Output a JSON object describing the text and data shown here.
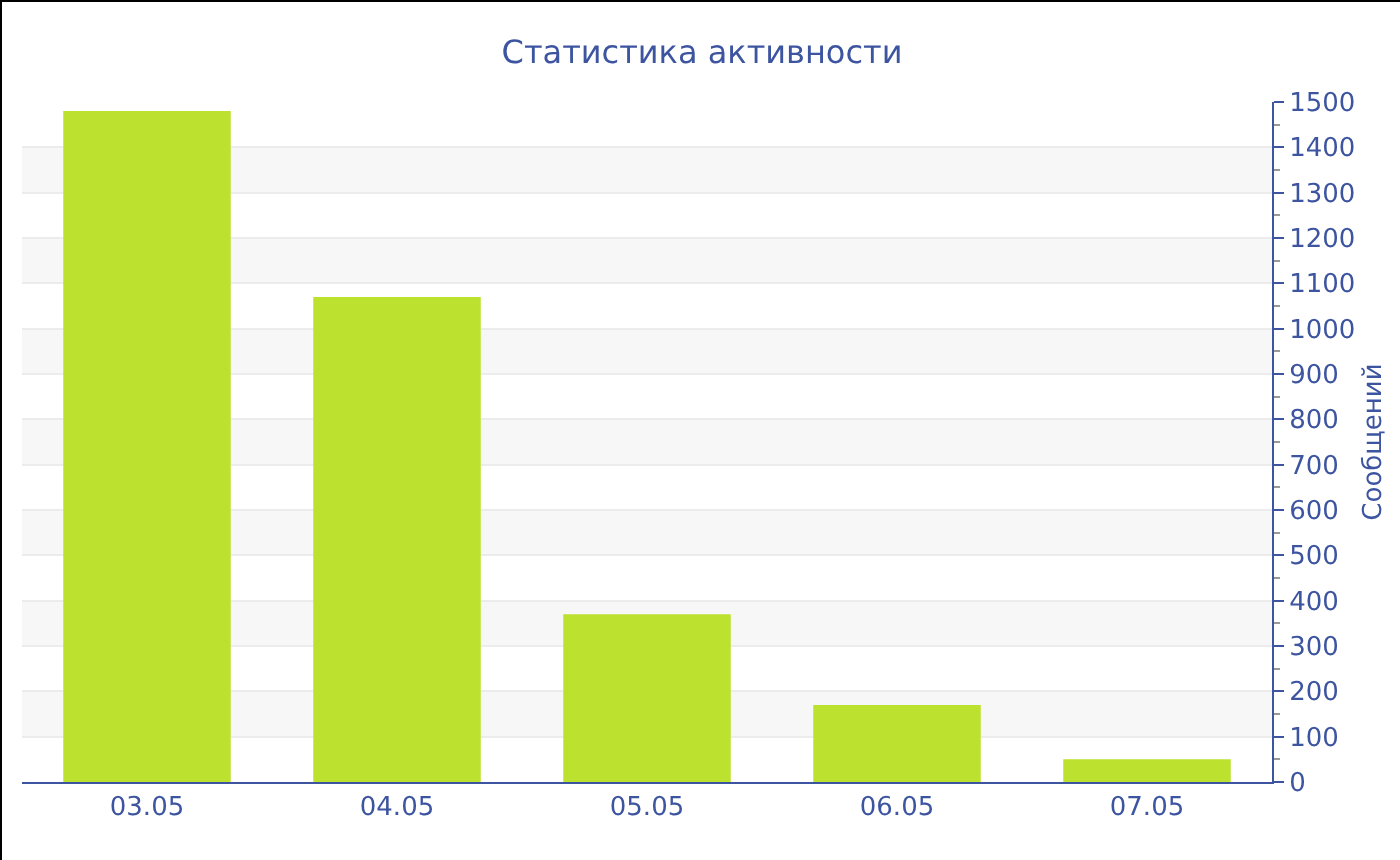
{
  "chart_data": {
    "type": "bar",
    "title": "Статистика активности",
    "ylabel": "Сообщений",
    "categories": [
      "03.05",
      "04.05",
      "05.05",
      "06.05",
      "07.05"
    ],
    "values": [
      1480,
      1070,
      370,
      170,
      50
    ],
    "color": "#bce22f",
    "ylim": [
      0,
      1500
    ],
    "yticks": [
      0,
      100,
      200,
      300,
      400,
      500,
      600,
      700,
      800,
      900,
      1000,
      1100,
      1200,
      1300,
      1400,
      1500
    ],
    "grid": "y"
  }
}
